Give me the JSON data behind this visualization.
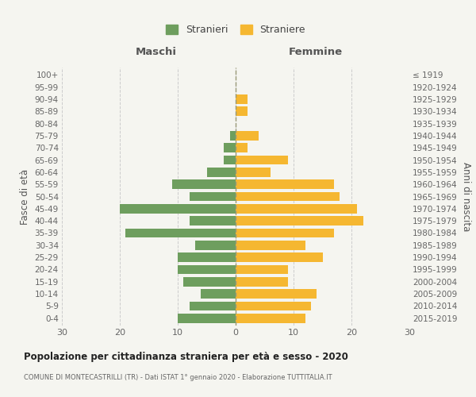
{
  "age_groups": [
    "0-4",
    "5-9",
    "10-14",
    "15-19",
    "20-24",
    "25-29",
    "30-34",
    "35-39",
    "40-44",
    "45-49",
    "50-54",
    "55-59",
    "60-64",
    "65-69",
    "70-74",
    "75-79",
    "80-84",
    "85-89",
    "90-94",
    "95-99",
    "100+"
  ],
  "birth_years": [
    "2015-2019",
    "2010-2014",
    "2005-2009",
    "2000-2004",
    "1995-1999",
    "1990-1994",
    "1985-1989",
    "1980-1984",
    "1975-1979",
    "1970-1974",
    "1965-1969",
    "1960-1964",
    "1955-1959",
    "1950-1954",
    "1945-1949",
    "1940-1944",
    "1935-1939",
    "1930-1934",
    "1925-1929",
    "1920-1924",
    "≤ 1919"
  ],
  "maschi": [
    10,
    8,
    6,
    9,
    10,
    10,
    7,
    19,
    8,
    20,
    8,
    11,
    5,
    2,
    2,
    1,
    0,
    0,
    0,
    0,
    0
  ],
  "femmine": [
    12,
    13,
    14,
    9,
    9,
    15,
    12,
    17,
    22,
    21,
    18,
    17,
    6,
    9,
    2,
    4,
    0,
    2,
    2,
    0,
    0
  ],
  "color_maschi": "#6e9e5e",
  "color_femmine": "#f5b731",
  "title": "Popolazione per cittadinanza straniera per età e sesso - 2020",
  "subtitle": "COMUNE DI MONTECASTRILLI (TR) - Dati ISTAT 1° gennaio 2020 - Elaborazione TUTTITALIA.IT",
  "xlabel_left": "Maschi",
  "xlabel_right": "Femmine",
  "ylabel_left": "Fasce di età",
  "ylabel_right": "Anni di nascita",
  "legend_maschi": "Stranieri",
  "legend_femmine": "Straniere",
  "xlim": 30,
  "bg_color": "#f5f5f0",
  "grid_color": "#cccccc"
}
